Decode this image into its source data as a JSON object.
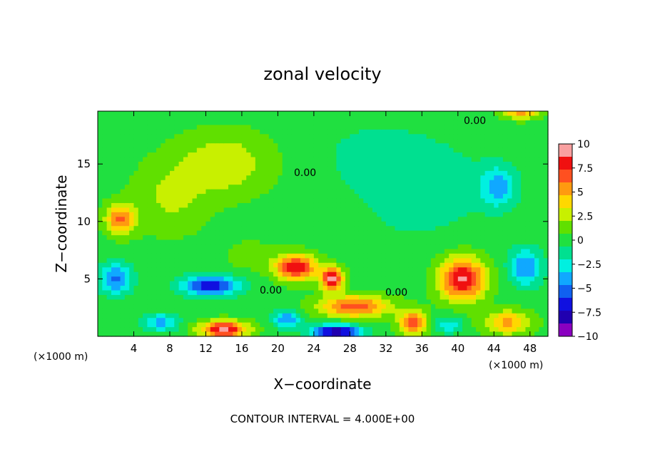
{
  "chart_data": {
    "type": "heatmap",
    "title": "zonal velocity",
    "xlabel": "X−coordinate",
    "ylabel": "Z−coordinate",
    "x_unit_left": "(×1000 m)",
    "x_unit_right": "(×1000 m)",
    "xlim": [
      0,
      50
    ],
    "ylim": [
      0,
      19.6
    ],
    "x_ticks": [
      4,
      8,
      12,
      16,
      20,
      24,
      28,
      32,
      36,
      40,
      44,
      48
    ],
    "y_ticks": [
      5,
      10,
      15
    ],
    "colorbar": {
      "range": [
        -10,
        10
      ],
      "tick_labels": [
        "10",
        "7.5",
        "5",
        "2.5",
        "0",
        "−2.5",
        "−5",
        "−7.5",
        "−10"
      ],
      "colors": [
        "#f9a0a0",
        "#f01010",
        "#ff5020",
        "#ff9a10",
        "#ffd800",
        "#c8f000",
        "#60e000",
        "#20e040",
        "#00e090",
        "#00f0e0",
        "#10a8ff",
        "#1060f0",
        "#1010e0",
        "#2000b0",
        "#8a00c0"
      ]
    },
    "contour_labels": [
      "0.00",
      "0.00",
      "0.00",
      "0.00"
    ],
    "footer": "CONTOUR INTERVAL = 4.000E+00",
    "blobs": [
      {
        "x": 14,
        "z": 15,
        "sx": 5,
        "sz": 2.6,
        "v": 3
      },
      {
        "x": 8,
        "z": 12,
        "sx": 4,
        "sz": 3,
        "v": 2
      },
      {
        "x": 2.5,
        "z": 10.2,
        "sx": 1.6,
        "sz": 1.3,
        "v": 6
      },
      {
        "x": 22,
        "z": 6,
        "sx": 2.2,
        "sz": 1.1,
        "v": 8.5
      },
      {
        "x": 26,
        "z": 5,
        "sx": 1.2,
        "sz": 1.0,
        "v": 9.5
      },
      {
        "x": 28.5,
        "z": 2.6,
        "sx": 3.8,
        "sz": 0.9,
        "v": 7
      },
      {
        "x": 35,
        "z": 1.2,
        "sx": 1.5,
        "sz": 1.0,
        "v": 7
      },
      {
        "x": 40.5,
        "z": 5,
        "sx": 2.5,
        "sz": 1.8,
        "v": 9
      },
      {
        "x": 45.5,
        "z": 1.2,
        "sx": 2.6,
        "sz": 1.0,
        "v": 5
      },
      {
        "x": 14,
        "z": 0.6,
        "sx": 2.6,
        "sz": 0.7,
        "v": 9
      },
      {
        "x": 12.5,
        "z": 4.4,
        "sx": 3.2,
        "sz": 0.9,
        "v": -7
      },
      {
        "x": 2,
        "z": 5,
        "sx": 1.8,
        "sz": 1.4,
        "v": -5
      },
      {
        "x": 26.5,
        "z": 0.4,
        "sx": 2.6,
        "sz": 0.6,
        "v": -9
      },
      {
        "x": 21,
        "z": 1.5,
        "sx": 1.5,
        "sz": 0.8,
        "v": -5
      },
      {
        "x": 47.5,
        "z": 6,
        "sx": 1.8,
        "sz": 1.6,
        "v": -5
      },
      {
        "x": 44.5,
        "z": 13,
        "sx": 2,
        "sz": 1.8,
        "v": -4
      },
      {
        "x": 36,
        "z": 13,
        "sx": 7,
        "sz": 4,
        "v": -2
      },
      {
        "x": 30,
        "z": 16,
        "sx": 6,
        "sz": 3,
        "v": -1
      },
      {
        "x": 7,
        "z": 1.2,
        "sx": 2,
        "sz": 0.8,
        "v": -4
      },
      {
        "x": 39,
        "z": 1.0,
        "sx": 1.5,
        "sz": 0.8,
        "v": -3
      },
      {
        "x": 47,
        "z": 19.5,
        "sx": 2,
        "sz": 0.6,
        "v": 5
      },
      {
        "x": 17,
        "z": 7,
        "sx": 3,
        "sz": 1.5,
        "v": 1
      },
      {
        "x": 32,
        "z": 7.5,
        "sx": 4,
        "sz": 1.6,
        "v": -0.5
      }
    ]
  }
}
